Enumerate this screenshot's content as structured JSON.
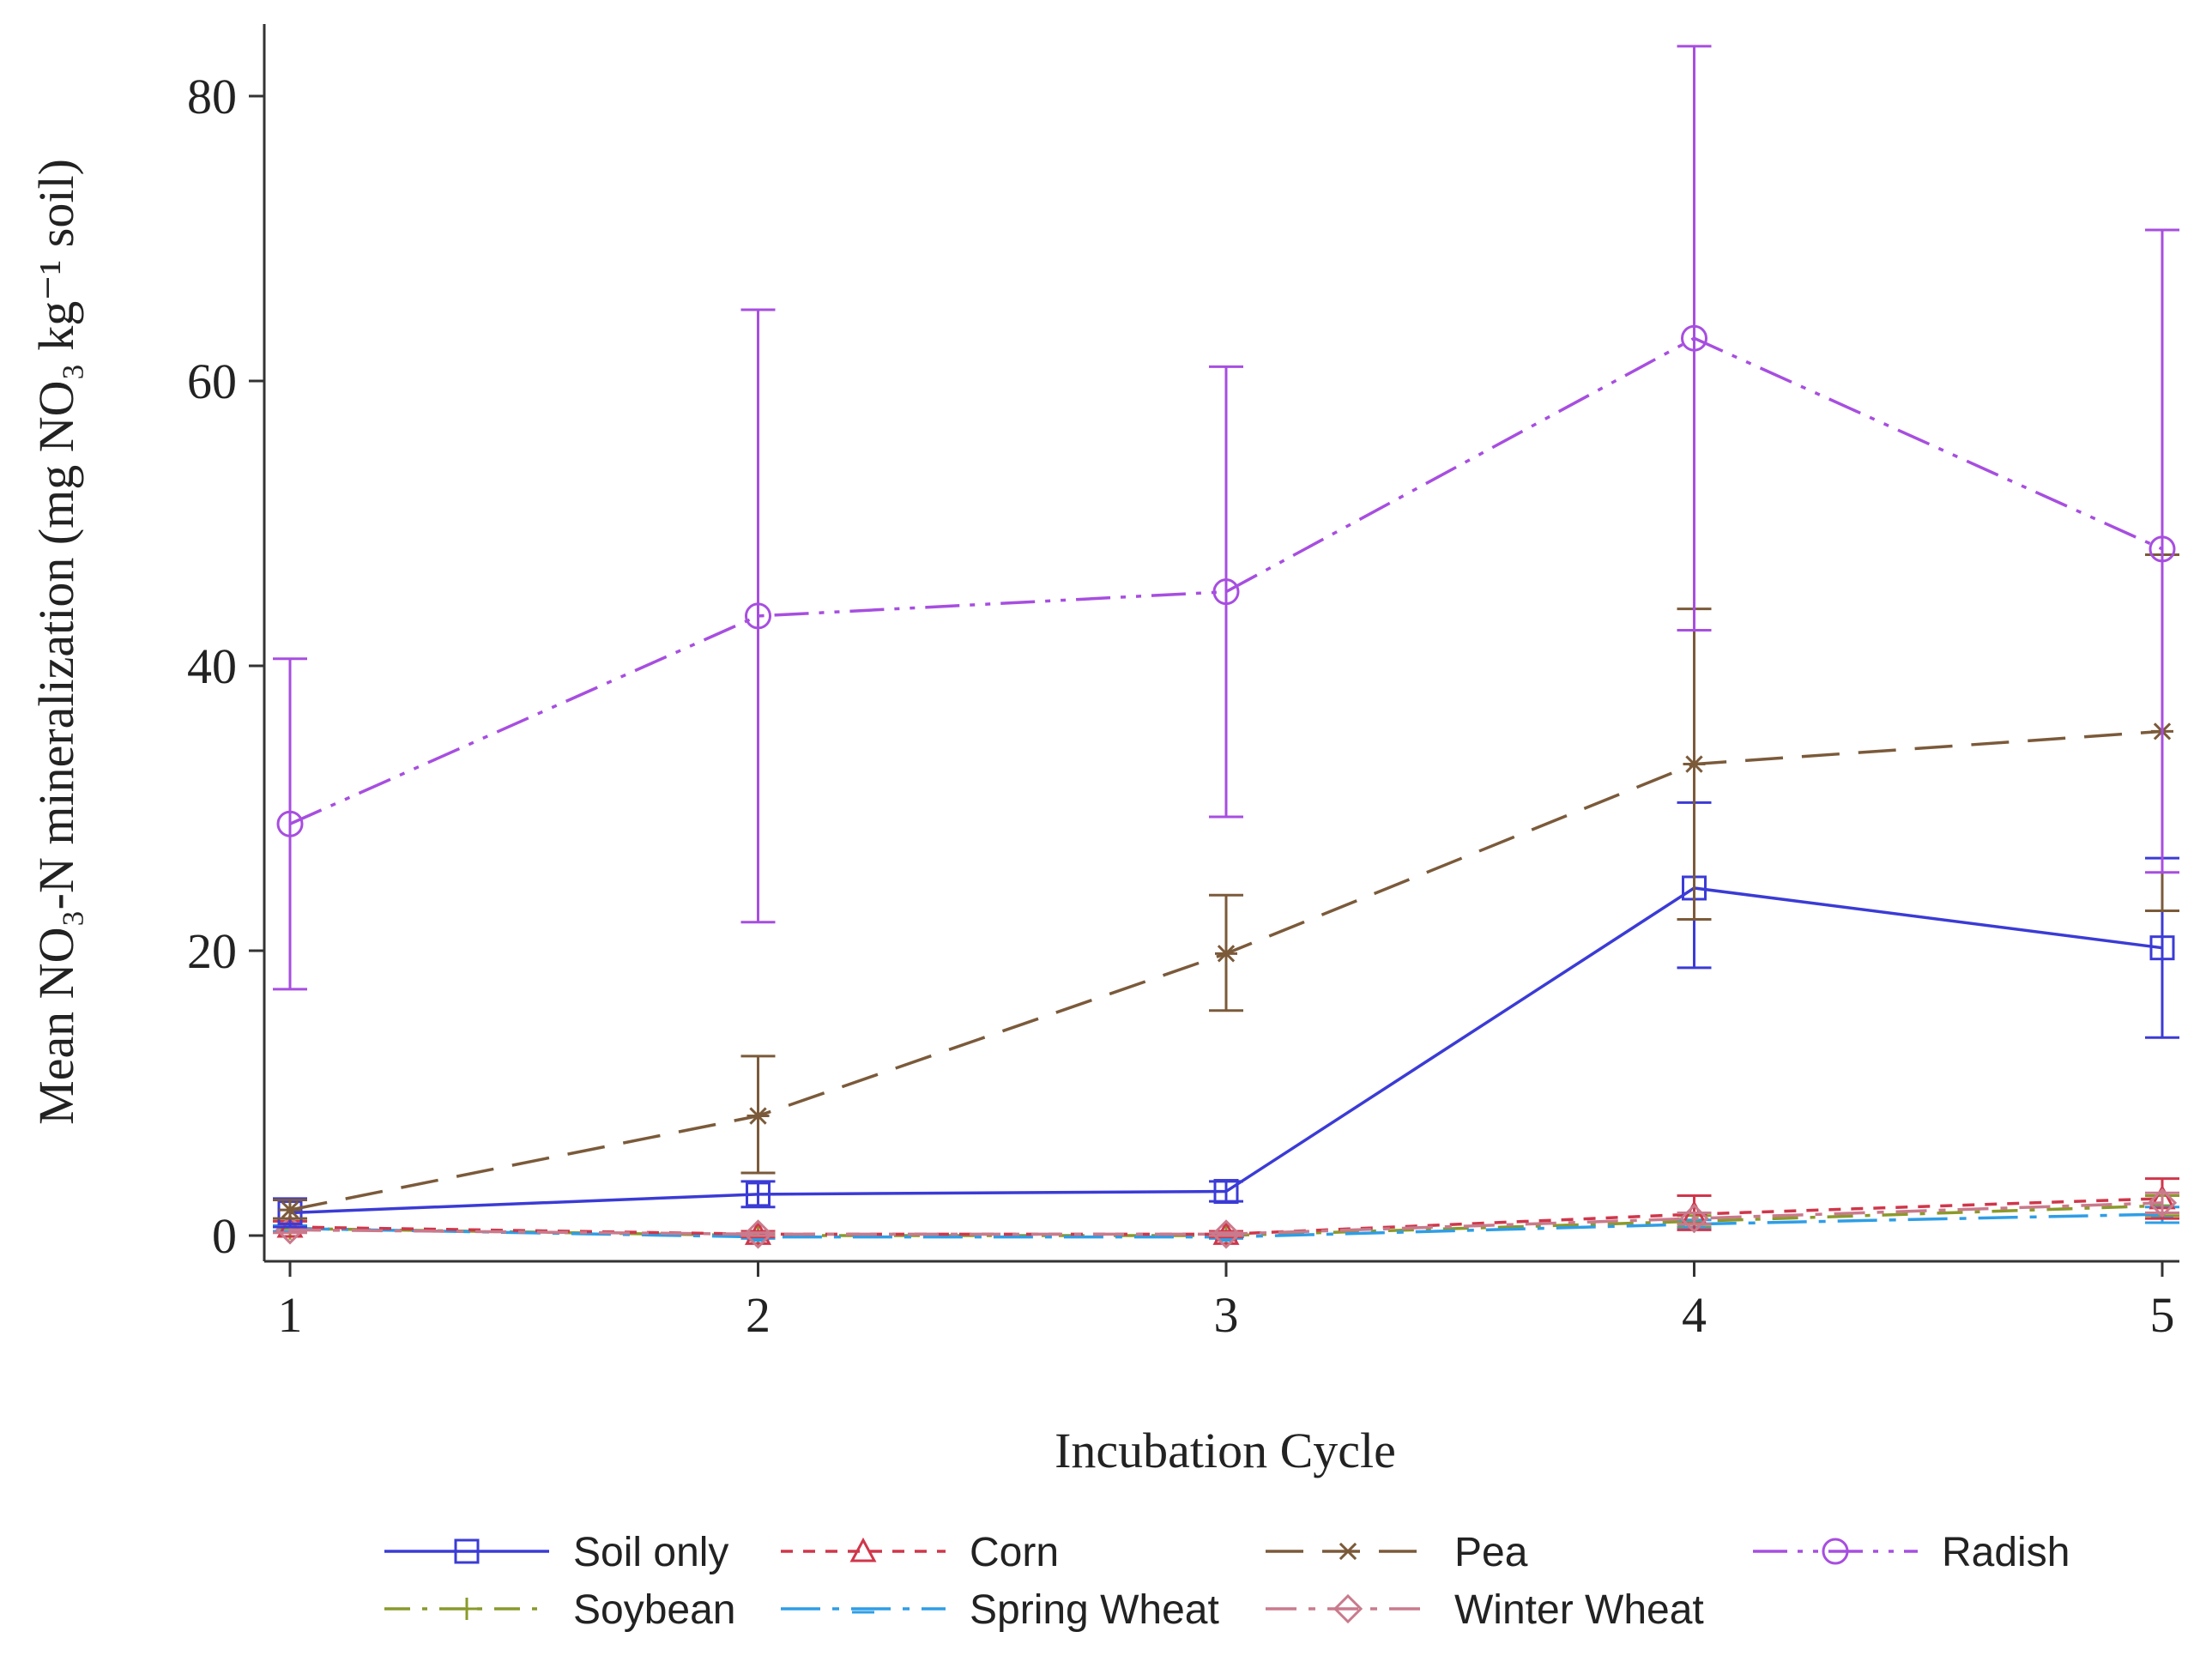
{
  "chart_data": {
    "type": "line",
    "title": "",
    "xlabel": "Incubation Cycle",
    "ylabel": "Mean NO₃-N mineralization (mg  NO₃ kg⁻¹ soil)",
    "x": [
      1,
      2,
      3,
      4,
      5
    ],
    "x_ticks": [
      "1",
      "2",
      "3",
      "4",
      "5"
    ],
    "xlim": [
      0.95,
      5.05
    ],
    "ylim": [
      -2,
      85
    ],
    "y_ticks": [
      0,
      20,
      40,
      60,
      80
    ],
    "y_tick_labels": [
      "0",
      "20",
      "40",
      "60",
      "80"
    ],
    "legend_position": "bottom",
    "series": [
      {
        "name": "Soil only",
        "color": "#3b3bd6",
        "marker": "square",
        "dash": "solid",
        "values": [
          1.6,
          2.9,
          3.1,
          24.4,
          20.2
        ],
        "err_low": [
          0.6,
          2.0,
          2.4,
          18.8,
          13.9
        ],
        "err_high": [
          2.6,
          3.8,
          3.8,
          30.4,
          26.5
        ]
      },
      {
        "name": "Corn",
        "color": "#d0364a",
        "marker": "triangle",
        "dash": "dashed",
        "values": [
          0.6,
          0.1,
          0.1,
          1.5,
          2.6
        ],
        "err_low": [
          0.2,
          -0.1,
          -0.1,
          0.4,
          1.2
        ],
        "err_high": [
          1.0,
          0.3,
          0.3,
          2.8,
          4.0
        ]
      },
      {
        "name": "Pea",
        "color": "#7b5a3a",
        "marker": "star",
        "dash": "longdash",
        "values": [
          1.8,
          8.4,
          19.8,
          33.1,
          35.4
        ],
        "err_low": [
          1.2,
          4.4,
          15.8,
          22.2,
          22.8
        ],
        "err_high": [
          2.5,
          12.6,
          23.9,
          44.0,
          47.8
        ]
      },
      {
        "name": "Radish",
        "color": "#a74ee0",
        "marker": "circle",
        "dash": "dashdotdot",
        "values": [
          28.9,
          43.5,
          45.2,
          63.0,
          48.2
        ],
        "err_low": [
          17.3,
          22.0,
          29.4,
          42.5,
          25.5
        ],
        "err_high": [
          40.5,
          65.0,
          61.0,
          83.5,
          70.6
        ]
      },
      {
        "name": "Soybean",
        "color": "#8a9a2a",
        "marker": "plus",
        "dash": "dashdot",
        "values": [
          0.5,
          0.0,
          0.0,
          1.0,
          2.1
        ],
        "err_low": [
          0.3,
          -0.1,
          -0.1,
          0.6,
          1.4
        ],
        "err_high": [
          0.7,
          0.1,
          0.1,
          1.4,
          2.8
        ]
      },
      {
        "name": "Spring Wheat",
        "color": "#2e9ee6",
        "marker": "bar",
        "dash": "longdashdot",
        "values": [
          0.5,
          -0.1,
          -0.1,
          0.8,
          1.5
        ],
        "err_low": [
          0.3,
          -0.2,
          -0.2,
          0.5,
          0.9
        ],
        "err_high": [
          0.7,
          0.0,
          0.0,
          1.1,
          2.0
        ]
      },
      {
        "name": "Winter Wheat",
        "color": "#c97a8c",
        "marker": "diamond",
        "dash": "dashdot2",
        "values": [
          0.4,
          0.1,
          0.1,
          1.2,
          2.3
        ],
        "err_low": [
          0.2,
          0.0,
          0.0,
          0.8,
          1.6
        ],
        "err_high": [
          0.6,
          0.2,
          0.2,
          1.6,
          3.0
        ]
      }
    ]
  }
}
